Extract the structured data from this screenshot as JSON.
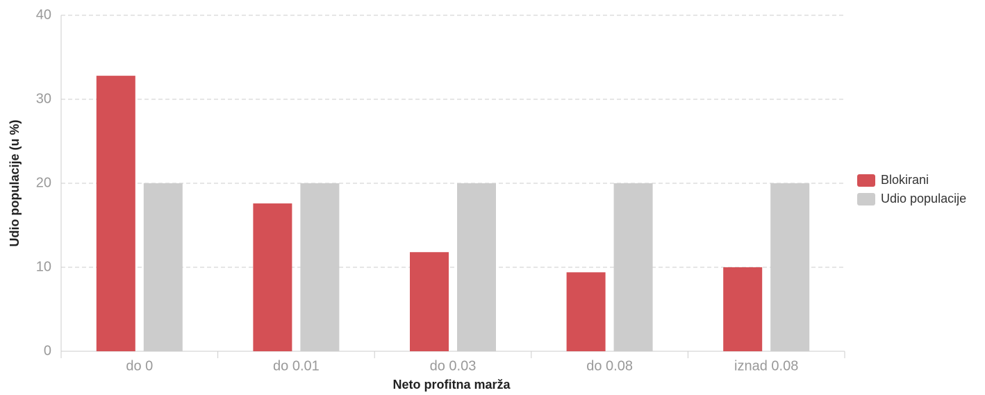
{
  "chart_data": {
    "type": "bar",
    "x_label": "Neto profitna marža",
    "y_label": "Udio populacije (u %)",
    "categories": [
      "do 0",
      "do 0.01",
      "do 0.03",
      "do 0.08",
      "iznad 0.08"
    ],
    "series": [
      {
        "name": "Blokirani",
        "color": "#d45055",
        "values": [
          32.8,
          17.6,
          11.8,
          9.4,
          10.0
        ]
      },
      {
        "name": "Udio populacije",
        "color": "#cccccc",
        "values": [
          20,
          20,
          20,
          20,
          20
        ]
      }
    ],
    "ylim": [
      0,
      40
    ],
    "yticks": [
      0,
      10,
      20,
      30,
      40
    ],
    "grid": true,
    "legend": "right"
  }
}
